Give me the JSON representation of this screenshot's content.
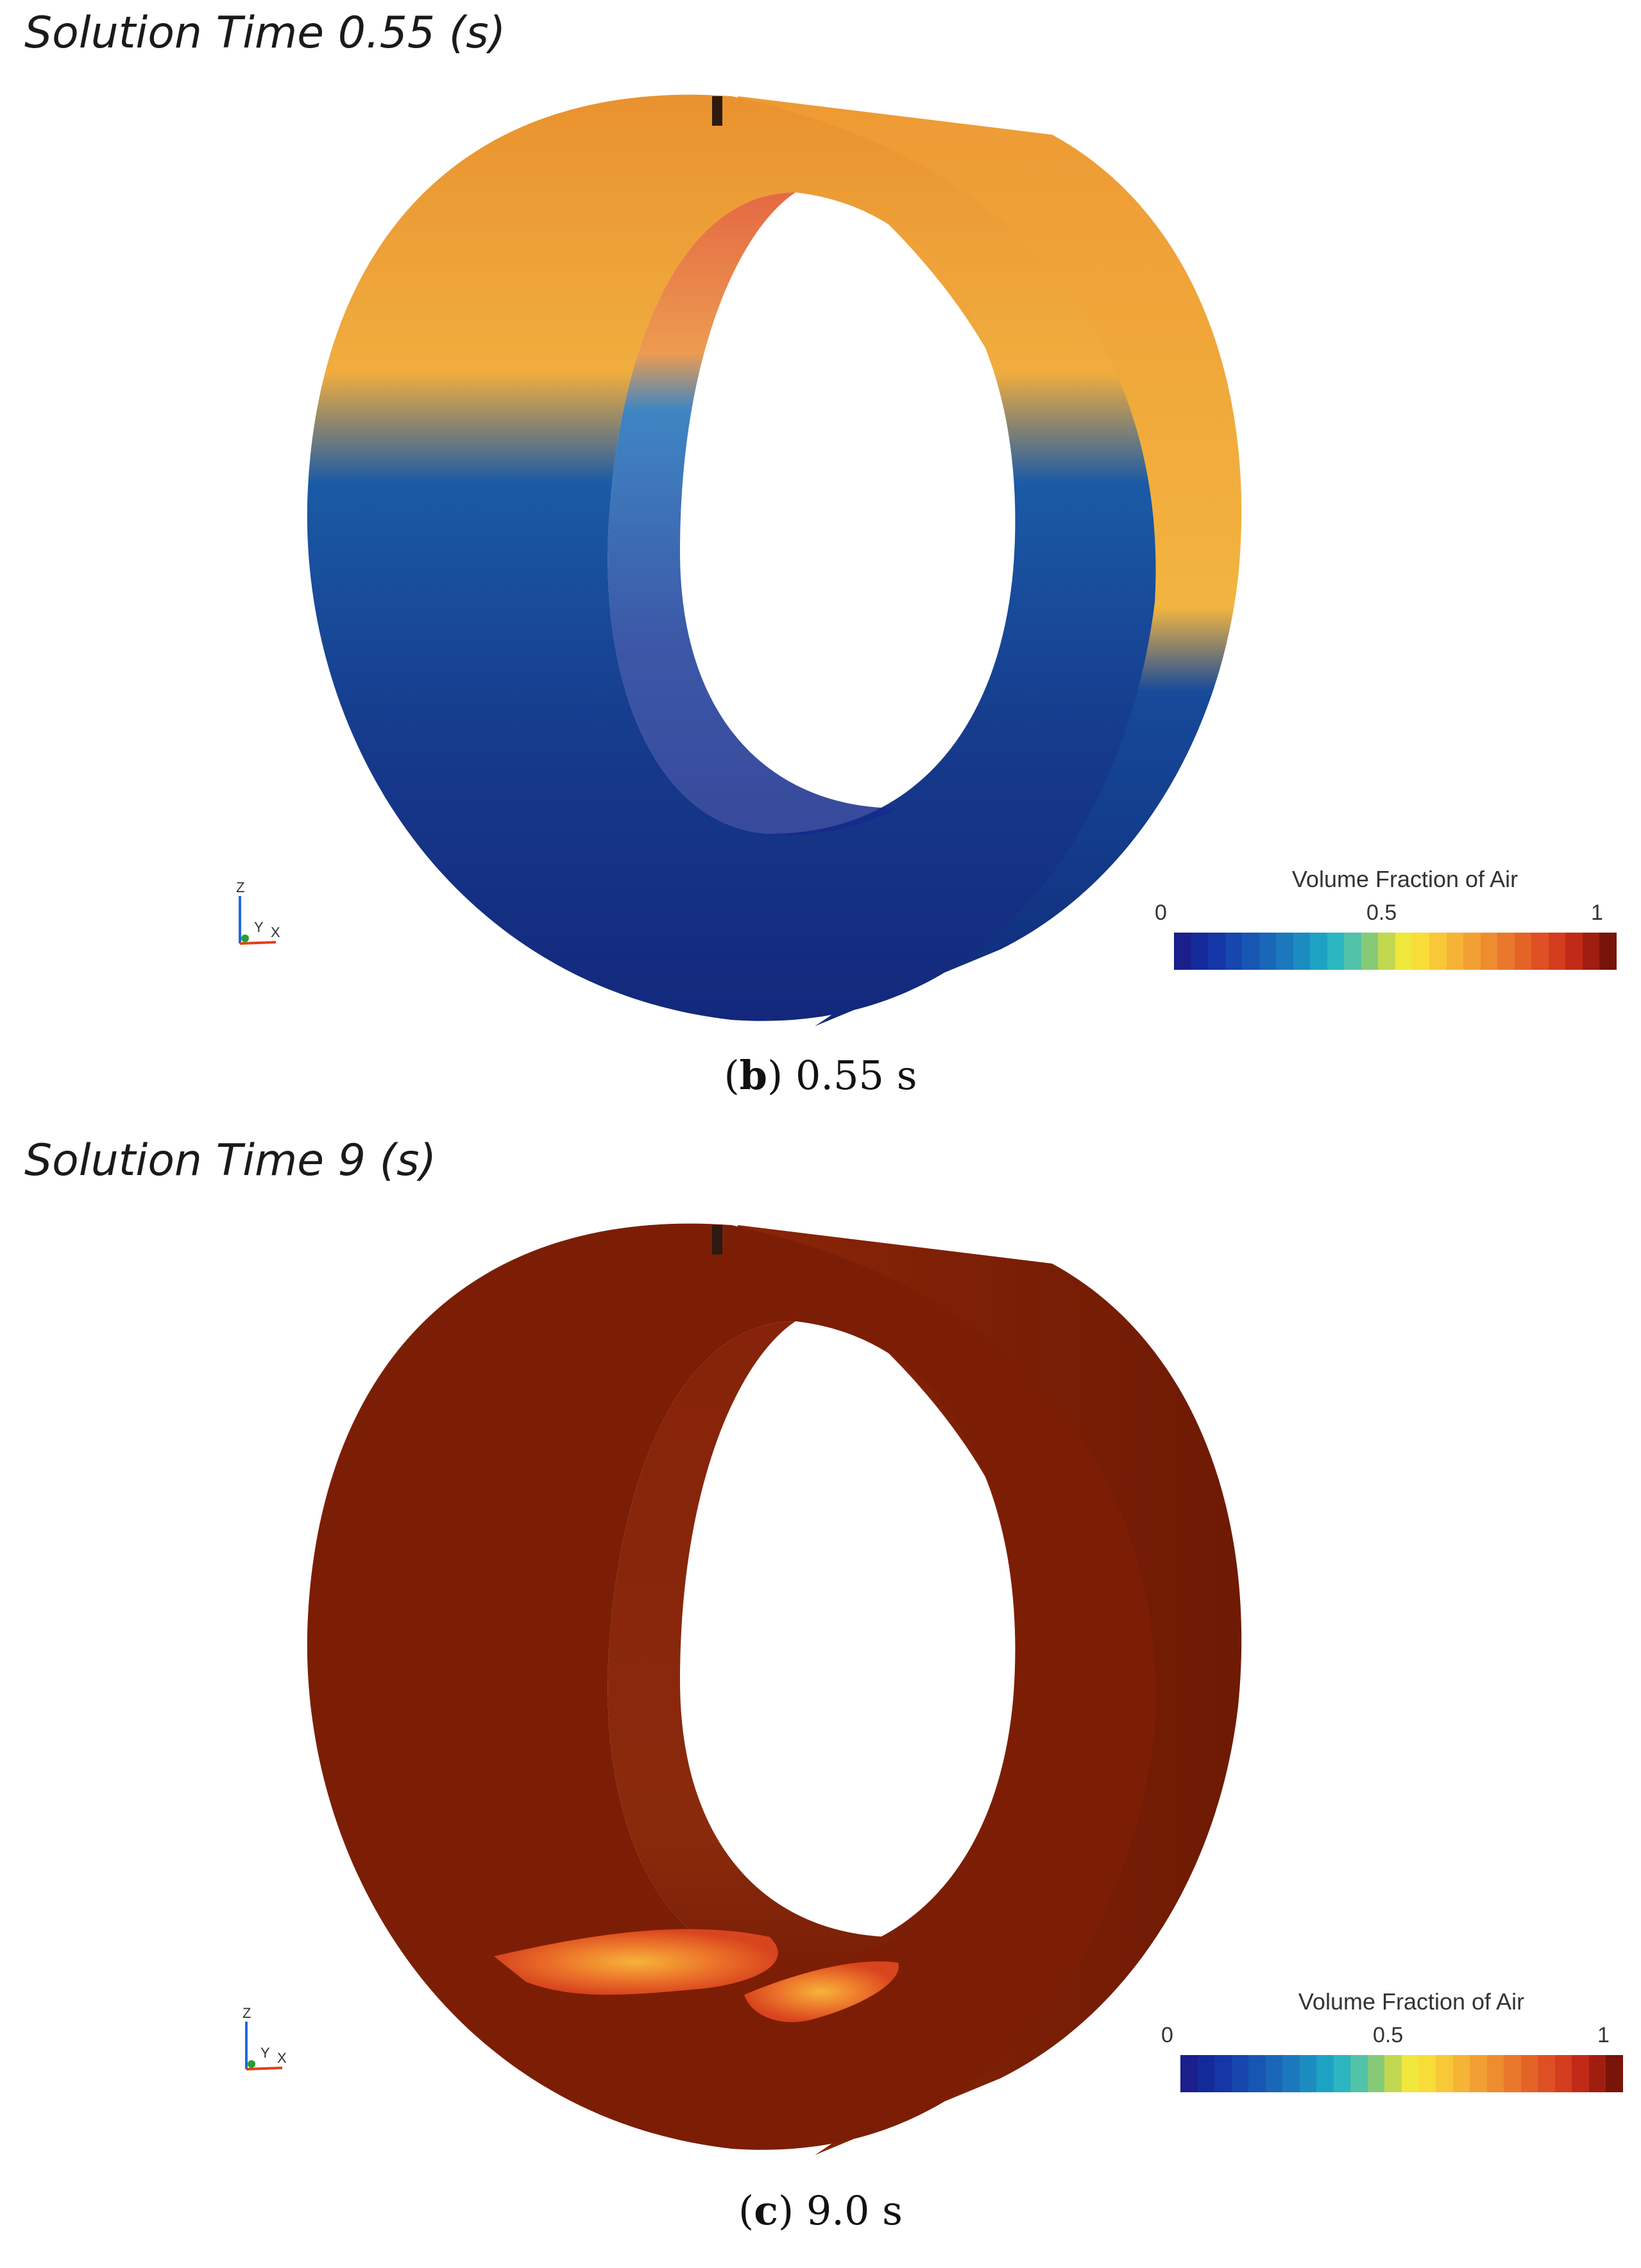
{
  "panels": [
    {
      "solution_time_label": "Solution Time 0.55 (s)",
      "caption_letter": "b",
      "caption_text": "0.55 s",
      "legend_title": "Volume Fraction of Air",
      "legend_ticks": [
        "0",
        "0.5",
        "1"
      ]
    },
    {
      "solution_time_label": "Solution Time 9 (s)",
      "caption_letter": "c",
      "caption_text": "9.0 s",
      "legend_title": "Volume Fraction of Air",
      "legend_ticks": [
        "0",
        "0.5",
        "1"
      ]
    }
  ],
  "axis_labels": {
    "z": "Z",
    "y": "Y",
    "x": "X"
  },
  "colors": {
    "colormap": [
      "#1a1f8c",
      "#152a9a",
      "#1536a6",
      "#1646ae",
      "#1856b4",
      "#1a66b8",
      "#1c78bc",
      "#1c8cc0",
      "#1ea2c4",
      "#2bb6c2",
      "#52c2a8",
      "#86ca78",
      "#c2d850",
      "#f0e83c",
      "#f8dc38",
      "#f8c838",
      "#f6b436",
      "#f2a034",
      "#ee8c30",
      "#ea782c",
      "#e46428",
      "#de5024",
      "#d43c1e",
      "#c22a18",
      "#a01e10",
      "#781408"
    ],
    "water_dark": "#0f2a78",
    "water_mid": "#17519c",
    "air_light": "#eeaa3c",
    "air_full": "#7a1f06"
  }
}
